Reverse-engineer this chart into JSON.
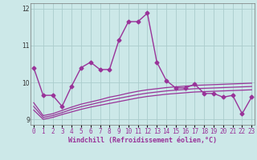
{
  "xlabel": "Windchill (Refroidissement éolien,°C)",
  "bg_color": "#cce8e8",
  "grid_color": "#aacccc",
  "line_color": "#993399",
  "x_values": [
    0,
    1,
    2,
    3,
    4,
    5,
    6,
    7,
    8,
    9,
    10,
    11,
    12,
    13,
    14,
    15,
    16,
    17,
    18,
    19,
    20,
    21,
    22,
    23
  ],
  "main_y": [
    10.4,
    9.65,
    9.65,
    9.35,
    9.9,
    10.4,
    10.55,
    10.35,
    10.35,
    11.15,
    11.65,
    11.65,
    11.88,
    10.55,
    10.05,
    9.85,
    9.85,
    9.95,
    9.7,
    9.7,
    9.6,
    9.65,
    9.15,
    9.6
  ],
  "line1_y": [
    9.25,
    9.0,
    9.05,
    9.13,
    9.2,
    9.27,
    9.33,
    9.38,
    9.43,
    9.48,
    9.53,
    9.58,
    9.62,
    9.65,
    9.68,
    9.7,
    9.72,
    9.74,
    9.75,
    9.76,
    9.77,
    9.78,
    9.79,
    9.8
  ],
  "line2_y": [
    9.35,
    9.05,
    9.1,
    9.18,
    9.27,
    9.34,
    9.4,
    9.46,
    9.52,
    9.57,
    9.62,
    9.67,
    9.71,
    9.74,
    9.77,
    9.79,
    9.81,
    9.83,
    9.84,
    9.85,
    9.86,
    9.87,
    9.88,
    9.89
  ],
  "line3_y": [
    9.45,
    9.1,
    9.15,
    9.24,
    9.33,
    9.41,
    9.47,
    9.53,
    9.6,
    9.65,
    9.71,
    9.76,
    9.8,
    9.83,
    9.86,
    9.88,
    9.9,
    9.92,
    9.93,
    9.94,
    9.95,
    9.96,
    9.97,
    9.98
  ],
  "ylim": [
    8.85,
    12.15
  ],
  "yticks": [
    9,
    10,
    11,
    12
  ],
  "ylabel_fontsize": 5.5,
  "xlabel_fontsize": 6.0,
  "tick_fontsize": 5.5
}
